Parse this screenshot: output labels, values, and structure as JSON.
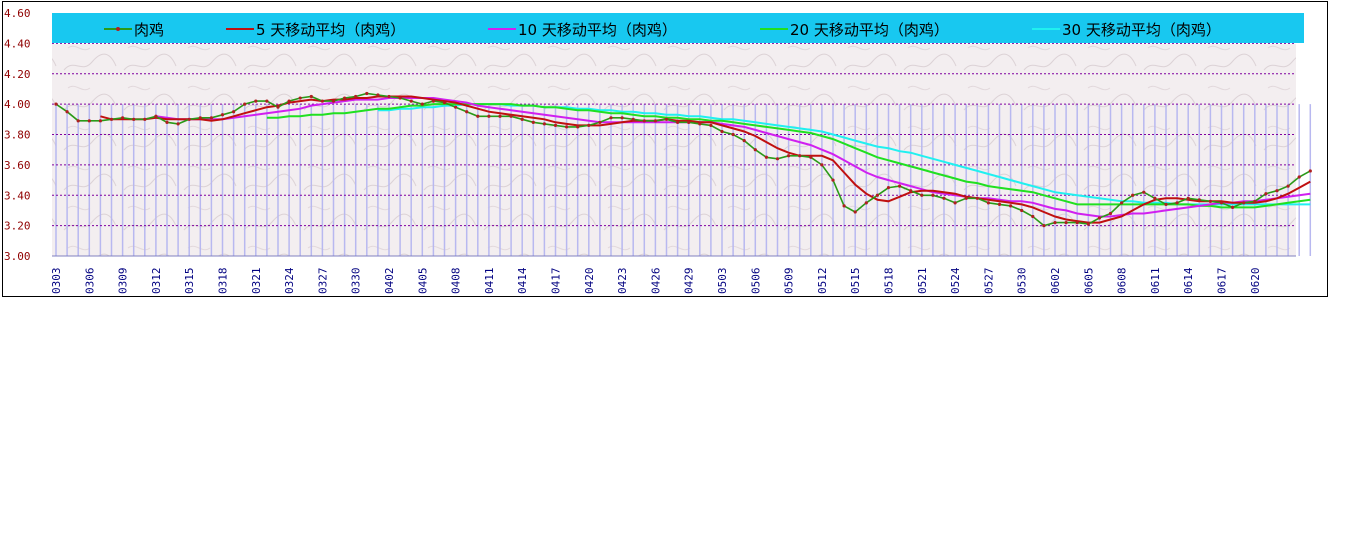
{
  "chart_data": {
    "type": "line",
    "title": "",
    "xlabel": "",
    "ylabel": "",
    "ylim": [
      3.0,
      4.6
    ],
    "yticks": [
      "3.00",
      "3.20",
      "3.40",
      "3.60",
      "3.80",
      "4.00",
      "4.20",
      "4.40",
      "4.60"
    ],
    "grid": true,
    "legend_position": "top",
    "colors": {
      "legend_band": "#18C8F0",
      "plot_bg": "#F3EEF0",
      "grid": "#8000A0",
      "bars": "#B8B8F0",
      "axis_text": "#900000",
      "date_text": "#000080",
      "raw": "#2A9A18",
      "raw_marker": "#B02020",
      "ma5": "#C01010",
      "ma10": "#D020F0",
      "ma20": "#20E020",
      "ma30": "#20F0F0"
    },
    "x_tick_labels": [
      "0303",
      "0306",
      "0309",
      "0312",
      "0315",
      "0318",
      "0321",
      "0324",
      "0327",
      "0330",
      "0402",
      "0405",
      "0408",
      "0411",
      "0414",
      "0417",
      "0420",
      "0423",
      "0426",
      "0429",
      "0503",
      "0506",
      "0509",
      "0512",
      "0515",
      "0518",
      "0521",
      "0524",
      "0527",
      "0530",
      "0602",
      "0605",
      "0608",
      "0611",
      "0614",
      "0617",
      "0620"
    ],
    "series": [
      {
        "key": "raw",
        "name": "肉鸡",
        "values": [
          4.0,
          3.95,
          3.89,
          3.89,
          3.89,
          3.9,
          3.91,
          3.9,
          3.9,
          3.92,
          3.88,
          3.87,
          3.9,
          3.91,
          3.91,
          3.93,
          3.95,
          4.0,
          4.02,
          4.02,
          3.98,
          4.02,
          4.04,
          4.05,
          4.02,
          4.02,
          4.04,
          4.05,
          4.07,
          4.06,
          4.05,
          4.04,
          4.02,
          4.0,
          4.02,
          4.01,
          3.98,
          3.95,
          3.92,
          3.92,
          3.92,
          3.92,
          3.9,
          3.88,
          3.87,
          3.86,
          3.85,
          3.85,
          3.86,
          3.88,
          3.91,
          3.91,
          3.9,
          3.89,
          3.89,
          3.9,
          3.88,
          3.88,
          3.87,
          3.86,
          3.82,
          3.8,
          3.76,
          3.7,
          3.65,
          3.64,
          3.66,
          3.66,
          3.65,
          3.6,
          3.5,
          3.33,
          3.29,
          3.35,
          3.4,
          3.45,
          3.46,
          3.43,
          3.4,
          3.4,
          3.38,
          3.35,
          3.38,
          3.38,
          3.35,
          3.34,
          3.33,
          3.3,
          3.26,
          3.2,
          3.22,
          3.22,
          3.22,
          3.21,
          3.25,
          3.28,
          3.35,
          3.4,
          3.42,
          3.38,
          3.34,
          3.35,
          3.38,
          3.37,
          3.36,
          3.35,
          3.32,
          3.35,
          3.36,
          3.41,
          3.43,
          3.46,
          3.52,
          3.56
        ]
      },
      {
        "key": "ma5",
        "name": "5 天移动平均（肉鸡）",
        "values": [
          null,
          null,
          null,
          null,
          3.92,
          3.9,
          3.9,
          3.9,
          3.9,
          3.91,
          3.9,
          3.9,
          3.9,
          3.9,
          3.89,
          3.9,
          3.92,
          3.94,
          3.96,
          3.98,
          3.99,
          4.01,
          4.02,
          4.03,
          4.02,
          4.03,
          4.03,
          4.04,
          4.04,
          4.05,
          4.05,
          4.05,
          4.05,
          4.04,
          4.03,
          4.02,
          4.01,
          3.99,
          3.97,
          3.95,
          3.94,
          3.93,
          3.92,
          3.91,
          3.9,
          3.88,
          3.87,
          3.86,
          3.86,
          3.86,
          3.87,
          3.88,
          3.89,
          3.89,
          3.89,
          3.9,
          3.89,
          3.89,
          3.88,
          3.88,
          3.86,
          3.84,
          3.82,
          3.79,
          3.75,
          3.71,
          3.68,
          3.66,
          3.66,
          3.66,
          3.63,
          3.55,
          3.47,
          3.41,
          3.37,
          3.36,
          3.39,
          3.42,
          3.43,
          3.43,
          3.42,
          3.41,
          3.39,
          3.38,
          3.37,
          3.36,
          3.35,
          3.34,
          3.32,
          3.29,
          3.26,
          3.24,
          3.23,
          3.22,
          3.22,
          3.24,
          3.26,
          3.3,
          3.34,
          3.37,
          3.38,
          3.38,
          3.37,
          3.36,
          3.36,
          3.36,
          3.35,
          3.35,
          3.35,
          3.36,
          3.38,
          3.41,
          3.45,
          3.49
        ]
      },
      {
        "key": "ma10",
        "name": "10 天移动平均（肉鸡）",
        "values": [
          null,
          null,
          null,
          null,
          null,
          null,
          null,
          null,
          null,
          3.92,
          3.91,
          3.9,
          3.9,
          3.9,
          3.9,
          3.9,
          3.91,
          3.92,
          3.93,
          3.94,
          3.95,
          3.96,
          3.97,
          3.99,
          4.0,
          4.01,
          4.02,
          4.03,
          4.03,
          4.03,
          4.04,
          4.04,
          4.04,
          4.04,
          4.04,
          4.03,
          4.02,
          4.01,
          3.99,
          3.98,
          3.97,
          3.96,
          3.95,
          3.94,
          3.93,
          3.92,
          3.91,
          3.9,
          3.89,
          3.88,
          3.88,
          3.88,
          3.88,
          3.88,
          3.88,
          3.88,
          3.88,
          3.88,
          3.88,
          3.88,
          3.87,
          3.86,
          3.85,
          3.83,
          3.81,
          3.79,
          3.77,
          3.75,
          3.73,
          3.7,
          3.67,
          3.63,
          3.59,
          3.55,
          3.52,
          3.5,
          3.48,
          3.46,
          3.44,
          3.42,
          3.41,
          3.4,
          3.39,
          3.38,
          3.38,
          3.37,
          3.36,
          3.36,
          3.35,
          3.33,
          3.31,
          3.3,
          3.28,
          3.27,
          3.26,
          3.26,
          3.27,
          3.28,
          3.28,
          3.29,
          3.3,
          3.31,
          3.32,
          3.33,
          3.34,
          3.35,
          3.35,
          3.36,
          3.36,
          3.37,
          3.38,
          3.39,
          3.4,
          3.41
        ]
      },
      {
        "key": "ma20",
        "name": "20 天移动平均（肉鸡）",
        "values": [
          null,
          null,
          null,
          null,
          null,
          null,
          null,
          null,
          null,
          null,
          null,
          null,
          null,
          null,
          null,
          null,
          null,
          null,
          null,
          3.91,
          3.91,
          3.92,
          3.92,
          3.93,
          3.93,
          3.94,
          3.94,
          3.95,
          3.96,
          3.97,
          3.97,
          3.98,
          3.99,
          3.99,
          4.0,
          4.0,
          4.0,
          4.0,
          4.0,
          4.0,
          4.0,
          4.0,
          3.99,
          3.99,
          3.98,
          3.98,
          3.97,
          3.96,
          3.96,
          3.95,
          3.94,
          3.94,
          3.93,
          3.92,
          3.92,
          3.91,
          3.91,
          3.9,
          3.9,
          3.89,
          3.89,
          3.88,
          3.87,
          3.86,
          3.85,
          3.84,
          3.83,
          3.82,
          3.81,
          3.79,
          3.77,
          3.74,
          3.71,
          3.68,
          3.65,
          3.63,
          3.61,
          3.59,
          3.57,
          3.55,
          3.53,
          3.51,
          3.49,
          3.48,
          3.46,
          3.45,
          3.44,
          3.43,
          3.42,
          3.4,
          3.38,
          3.36,
          3.34,
          3.34,
          3.34,
          3.34,
          3.34,
          3.34,
          3.34,
          3.34,
          3.34,
          3.34,
          3.34,
          3.33,
          3.33,
          3.32,
          3.32,
          3.32,
          3.32,
          3.33,
          3.34,
          3.35,
          3.36,
          3.37
        ]
      },
      {
        "key": "ma30",
        "name": "30 天移动平均（肉鸡）",
        "values": [
          null,
          null,
          null,
          null,
          null,
          null,
          null,
          null,
          null,
          null,
          null,
          null,
          null,
          null,
          null,
          null,
          null,
          null,
          null,
          null,
          null,
          null,
          null,
          null,
          null,
          null,
          null,
          null,
          null,
          3.96,
          3.96,
          3.97,
          3.97,
          3.98,
          3.98,
          3.99,
          3.99,
          4.0,
          4.0,
          4.0,
          4.0,
          3.99,
          3.99,
          3.99,
          3.98,
          3.98,
          3.98,
          3.97,
          3.97,
          3.96,
          3.96,
          3.95,
          3.95,
          3.94,
          3.94,
          3.93,
          3.93,
          3.92,
          3.92,
          3.91,
          3.9,
          3.9,
          3.89,
          3.88,
          3.87,
          3.86,
          3.85,
          3.84,
          3.83,
          3.82,
          3.8,
          3.78,
          3.76,
          3.74,
          3.72,
          3.71,
          3.69,
          3.68,
          3.66,
          3.64,
          3.62,
          3.6,
          3.58,
          3.56,
          3.54,
          3.52,
          3.5,
          3.48,
          3.46,
          3.44,
          3.42,
          3.41,
          3.4,
          3.39,
          3.38,
          3.37,
          3.36,
          3.36,
          3.35,
          3.35,
          3.35,
          3.34,
          3.34,
          3.34,
          3.34,
          3.34,
          3.34,
          3.34,
          3.34,
          3.34,
          3.34,
          3.34,
          3.34,
          3.34
        ]
      }
    ]
  }
}
